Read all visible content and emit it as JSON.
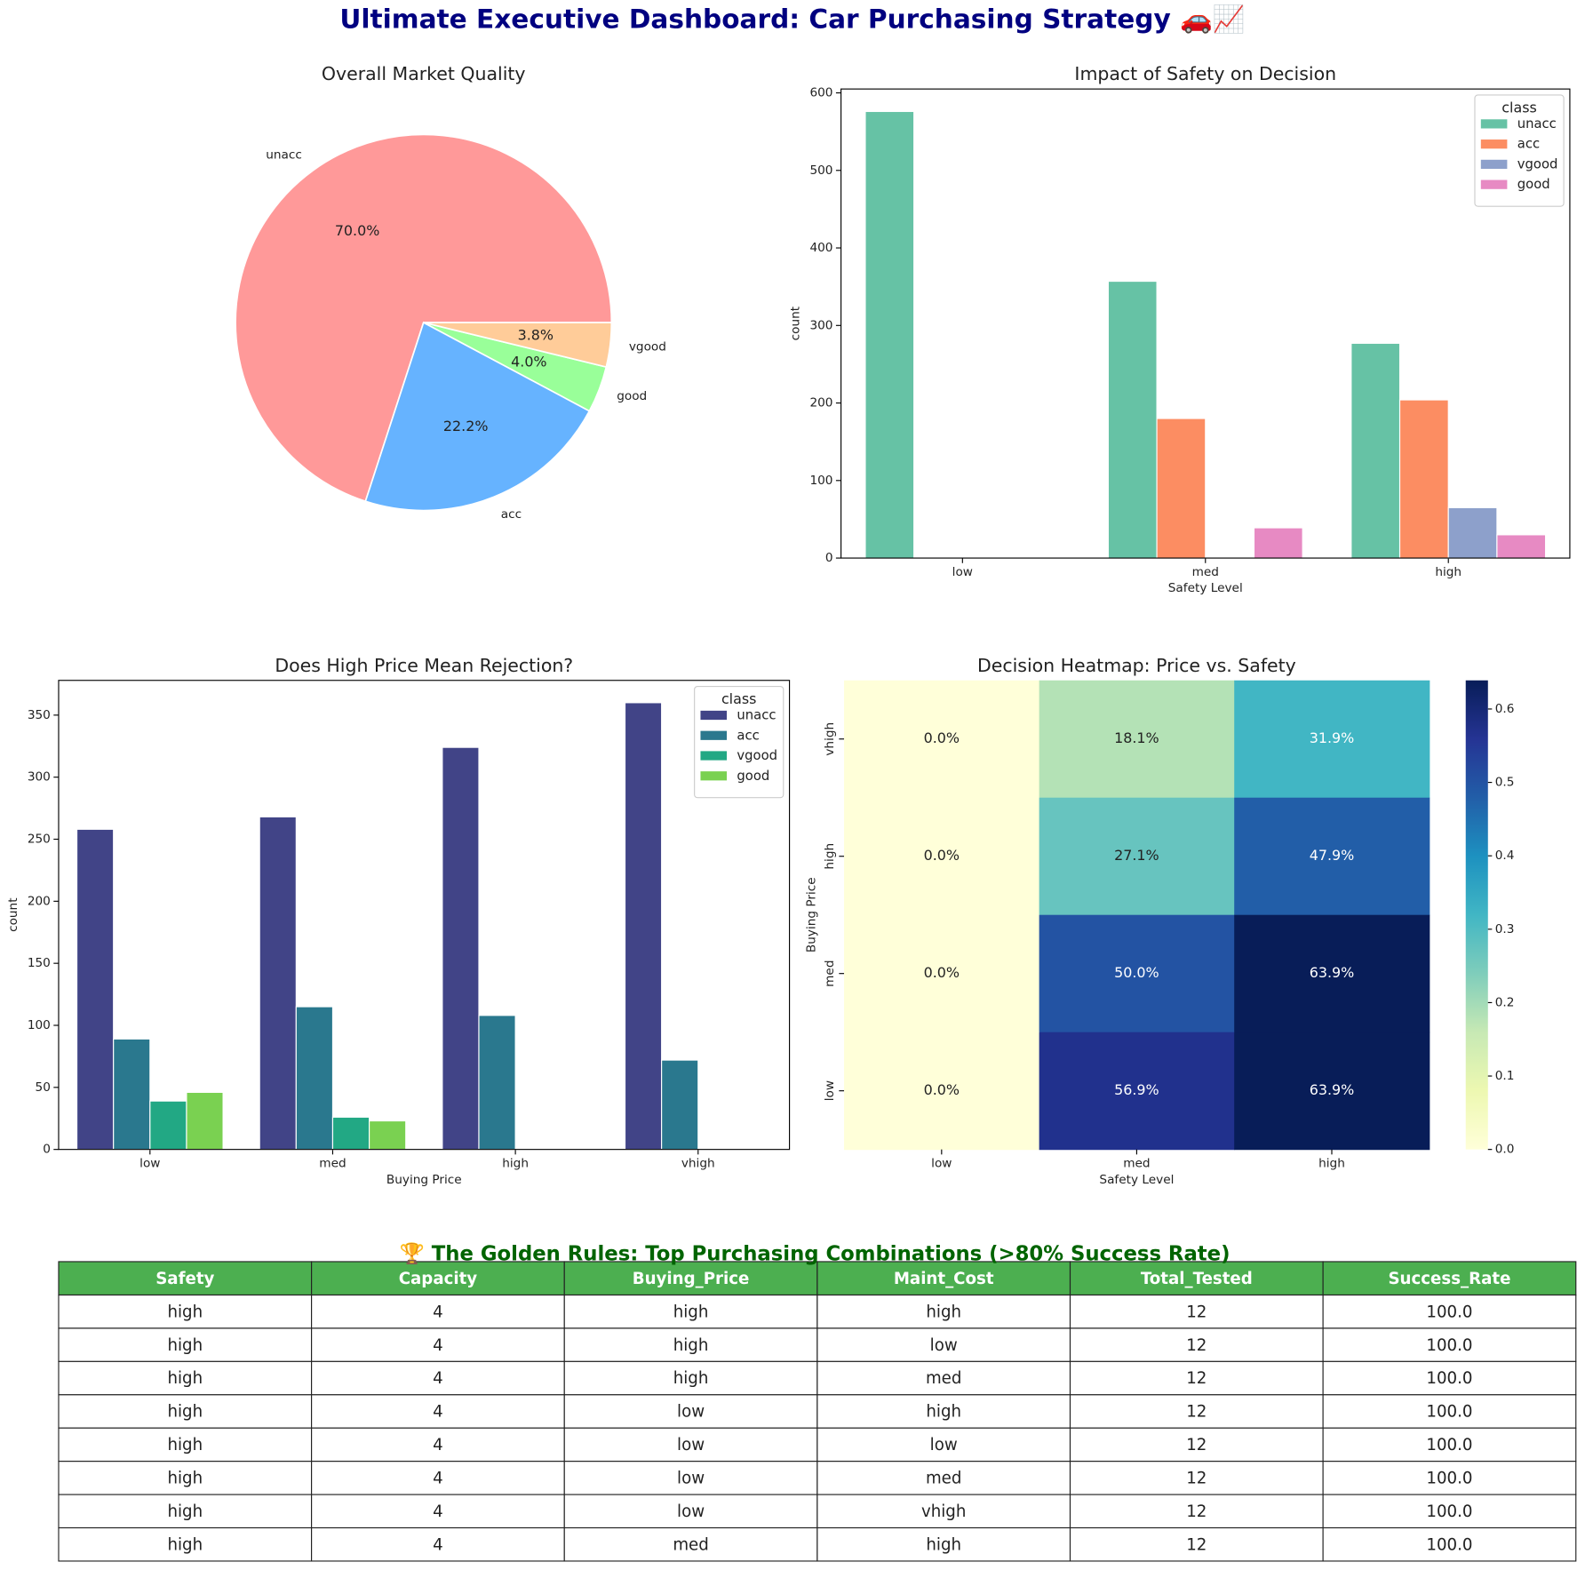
{
  "title": "Ultimate Executive Dashboard: Car Purchasing Strategy 🚗📈",
  "chart_data": [
    {
      "type": "pie",
      "title": "Overall Market Quality",
      "categories": [
        "unacc",
        "acc",
        "good",
        "vgood"
      ],
      "values": [
        70.0,
        22.2,
        4.0,
        3.8
      ],
      "value_labels": [
        "70.0%",
        "22.2%",
        "4.0%",
        "3.8%"
      ],
      "colors": [
        "#ff9999",
        "#66b3ff",
        "#99ff99",
        "#ffcc99"
      ]
    },
    {
      "type": "bar",
      "title": "Impact of Safety on Decision",
      "xlabel": "Safety Level",
      "ylabel": "count",
      "categories": [
        "low",
        "med",
        "high"
      ],
      "legend_title": "class",
      "legend": "upper right",
      "series": [
        {
          "name": "unacc",
          "color": "#66c2a5",
          "values": [
            576,
            357,
            277
          ]
        },
        {
          "name": "acc",
          "color": "#fc8d62",
          "values": [
            null,
            180,
            204
          ]
        },
        {
          "name": "vgood",
          "color": "#8da0cb",
          "values": [
            null,
            null,
            65
          ]
        },
        {
          "name": "good",
          "color": "#e78ac3",
          "values": [
            null,
            39,
            30
          ]
        }
      ],
      "ylim": [
        0,
        605
      ],
      "yticks": [
        0,
        100,
        200,
        300,
        400,
        500,
        600
      ]
    },
    {
      "type": "bar",
      "title": "Does High Price Mean Rejection?",
      "xlabel": "Buying Price",
      "ylabel": "count",
      "categories": [
        "low",
        "med",
        "high",
        "vhigh"
      ],
      "legend_title": "class",
      "legend": "upper right",
      "series": [
        {
          "name": "unacc",
          "color": "#414487",
          "values": [
            258,
            268,
            324,
            360
          ]
        },
        {
          "name": "acc",
          "color": "#2a788e",
          "values": [
            89,
            115,
            108,
            72
          ]
        },
        {
          "name": "vgood",
          "color": "#22a884",
          "values": [
            39,
            26,
            null,
            null
          ]
        },
        {
          "name": "good",
          "color": "#7ad151",
          "values": [
            46,
            23,
            null,
            null
          ]
        }
      ],
      "ylim": [
        0,
        378
      ],
      "yticks": [
        0,
        50,
        100,
        150,
        200,
        250,
        300,
        350
      ]
    },
    {
      "type": "heatmap",
      "title": "Decision Heatmap: Price vs. Safety",
      "xlabel": "Safety Level",
      "ylabel": "Buying Price",
      "categories": [
        "low",
        "med",
        "high"
      ],
      "y_categories": [
        "vhigh",
        "high",
        "med",
        "low"
      ],
      "values": [
        [
          0,
          0.181,
          0.319
        ],
        [
          0,
          0.271,
          0.479
        ],
        [
          0,
          0.5,
          0.639
        ],
        [
          0,
          0.569,
          0.639
        ]
      ],
      "value_labels": [
        [
          "0.0%",
          "18.1%",
          "31.9%"
        ],
        [
          "0.0%",
          "27.1%",
          "47.9%"
        ],
        [
          "0.0%",
          "50.0%",
          "63.9%"
        ],
        [
          "0.0%",
          "56.9%",
          "63.9%"
        ]
      ],
      "colormap": "YlGnBu",
      "zlim": [
        0,
        0.639
      ],
      "zticks": [
        {
          "value": 0,
          "label": "0.0"
        },
        0.1,
        0.2,
        0.3,
        0.4,
        0.5,
        0.6
      ]
    }
  ],
  "table": {
    "title": "🏆 The Golden Rules: Top Purchasing Combinations (>80% Success Rate)",
    "columns": [
      "Safety",
      "Capacity",
      "Buying_Price",
      "Maint_Cost",
      "Total_Tested",
      "Success_Rate"
    ],
    "rows": [
      [
        "high",
        "4",
        "high",
        "high",
        "12",
        "100.0"
      ],
      [
        "high",
        "4",
        "high",
        "low",
        "12",
        "100.0"
      ],
      [
        "high",
        "4",
        "high",
        "med",
        "12",
        "100.0"
      ],
      [
        "high",
        "4",
        "low",
        "high",
        "12",
        "100.0"
      ],
      [
        "high",
        "4",
        "low",
        "low",
        "12",
        "100.0"
      ],
      [
        "high",
        "4",
        "low",
        "med",
        "12",
        "100.0"
      ],
      [
        "high",
        "4",
        "low",
        "vhigh",
        "12",
        "100.0"
      ],
      [
        "high",
        "4",
        "med",
        "high",
        "12",
        "100.0"
      ]
    ]
  }
}
